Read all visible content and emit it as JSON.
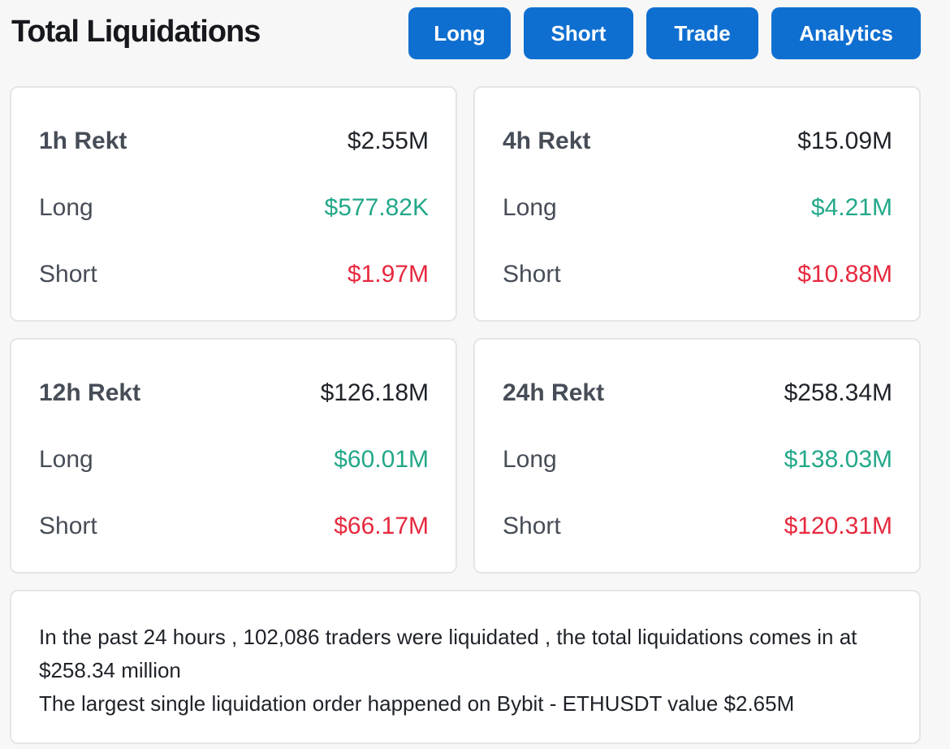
{
  "header": {
    "title": "Total Liquidations",
    "buttons": [
      {
        "label": "Long"
      },
      {
        "label": "Short"
      },
      {
        "label": "Trade"
      },
      {
        "label": "Analytics"
      }
    ]
  },
  "cards": [
    {
      "title": "1h Rekt",
      "total": "$2.55M",
      "long_label": "Long",
      "long": "$577.82K",
      "short_label": "Short",
      "short": "$1.97M"
    },
    {
      "title": "4h Rekt",
      "total": "$15.09M",
      "long_label": "Long",
      "long": "$4.21M",
      "short_label": "Short",
      "short": "$10.88M"
    },
    {
      "title": "12h Rekt",
      "total": "$126.18M",
      "long_label": "Long",
      "long": "$60.01M",
      "short_label": "Short",
      "short": "$66.17M"
    },
    {
      "title": "24h Rekt",
      "total": "$258.34M",
      "long_label": "Long",
      "long": "$138.03M",
      "short_label": "Short",
      "short": "$120.31M"
    }
  ],
  "summary": {
    "line1": "In the past 24 hours , 102,086 traders were liquidated , the total liquidations comes in at $258.34 million",
    "line2": "The largest single liquidation order happened on Bybit - ETHUSDT value $2.65M"
  },
  "colors": {
    "accent": "#0f6fd1",
    "long": "#22a889",
    "short": "#e6293f"
  }
}
